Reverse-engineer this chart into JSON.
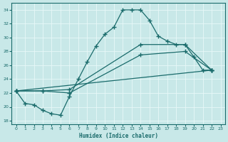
{
  "xlabel": "Humidex (Indice chaleur)",
  "xlim": [
    -0.5,
    23.5
  ],
  "ylim": [
    17.5,
    35.0
  ],
  "yticks": [
    18,
    20,
    22,
    24,
    26,
    28,
    30,
    32,
    34
  ],
  "xticks": [
    0,
    1,
    2,
    3,
    4,
    5,
    6,
    7,
    8,
    9,
    10,
    11,
    12,
    13,
    14,
    15,
    16,
    17,
    18,
    19,
    20,
    21,
    22,
    23
  ],
  "bg_color": "#c8e8e8",
  "line_color": "#1a6b6b",
  "grid_color": "#e8f8f8",
  "lines": [
    {
      "x": [
        0,
        1,
        2,
        3,
        4,
        5,
        6,
        7,
        8,
        9,
        10,
        11,
        12,
        13,
        14,
        15,
        16,
        17,
        18,
        19,
        20,
        21,
        22
      ],
      "y": [
        22.3,
        20.5,
        20.3,
        19.5,
        19.0,
        18.8,
        21.5,
        24.0,
        26.5,
        28.8,
        30.5,
        31.5,
        34.0,
        34.0,
        34.0,
        32.5,
        30.2,
        29.5,
        29.0,
        29.0,
        27.2,
        25.3,
        25.3
      ]
    },
    {
      "x": [
        0,
        3,
        6,
        14,
        19,
        22
      ],
      "y": [
        22.3,
        22.3,
        22.5,
        29.0,
        29.0,
        25.3
      ]
    },
    {
      "x": [
        0,
        3,
        6,
        14,
        19,
        22
      ],
      "y": [
        22.3,
        22.3,
        22.0,
        27.5,
        28.0,
        25.3
      ]
    },
    {
      "x": [
        0,
        22
      ],
      "y": [
        22.3,
        25.3
      ]
    }
  ]
}
